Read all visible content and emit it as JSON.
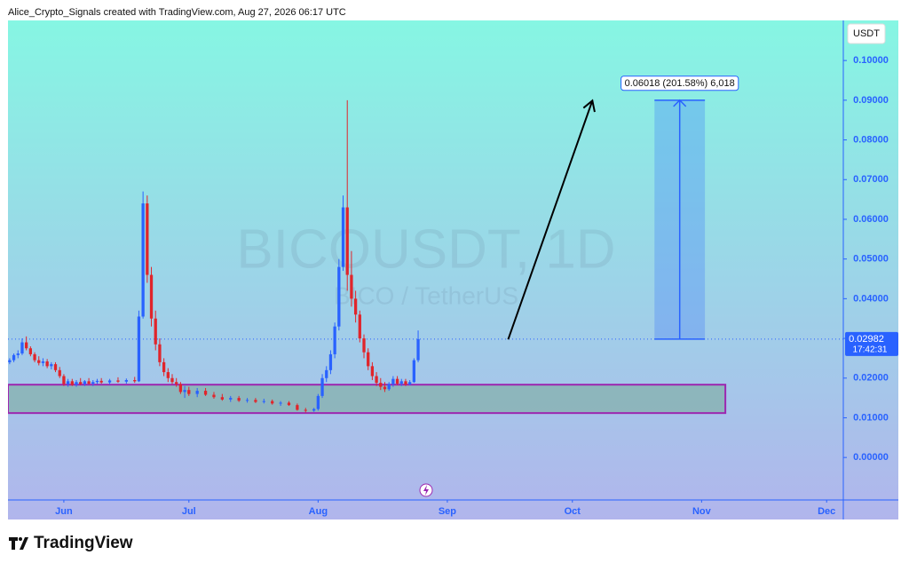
{
  "header": "Alice_Crypto_Signals created with TradingView.com, Aug 27, 2026 06:17 UTC",
  "brand": "TradingView",
  "chart_data": {
    "type": "candlestick",
    "watermark": "BICOUSDT, 1D",
    "watermark_subtitle": "BICO / TetherUS",
    "axis_unit": "USDT",
    "up_color": "#2962ff",
    "down_color": "#e0252b",
    "x": [
      -13,
      -12,
      -11,
      -10,
      -9,
      -8,
      -7,
      -6,
      -5,
      -4,
      -3,
      -2,
      -1,
      0,
      1,
      2,
      3,
      4,
      5,
      6,
      7,
      8,
      9,
      11,
      13,
      15,
      17,
      18,
      19,
      20,
      21,
      22,
      23,
      24,
      25,
      26,
      27,
      28,
      29,
      30,
      32,
      34,
      36,
      38,
      40,
      42,
      44,
      46,
      48,
      50,
      52,
      54,
      56,
      58,
      60,
      61,
      62,
      63,
      64,
      65,
      66,
      67,
      68,
      69,
      70,
      71,
      72,
      73,
      74,
      75,
      76,
      77,
      78,
      79,
      80,
      81,
      82,
      83,
      84,
      85
    ],
    "open": [
      0.024,
      0.0245,
      0.0258,
      0.0262,
      0.029,
      0.0275,
      0.026,
      0.0245,
      0.0238,
      0.0242,
      0.023,
      0.0235,
      0.022,
      0.0205,
      0.0185,
      0.0192,
      0.0183,
      0.019,
      0.0185,
      0.0192,
      0.0186,
      0.019,
      0.0193,
      0.0189,
      0.0194,
      0.0191,
      0.0195,
      0.0192,
      0.0355,
      0.064,
      0.046,
      0.035,
      0.0285,
      0.024,
      0.0215,
      0.02,
      0.019,
      0.0185,
      0.0165,
      0.017,
      0.016,
      0.0168,
      0.0158,
      0.0152,
      0.0146,
      0.015,
      0.0143,
      0.0145,
      0.014,
      0.0142,
      0.0136,
      0.0138,
      0.0132,
      0.012,
      0.0118,
      0.0122,
      0.0155,
      0.02,
      0.022,
      0.026,
      0.033,
      0.048,
      0.063,
      0.046,
      0.04,
      0.036,
      0.03,
      0.0265,
      0.023,
      0.0205,
      0.0188,
      0.0178,
      0.0172,
      0.0185,
      0.0198,
      0.0186,
      0.0192,
      0.0184,
      0.019,
      0.0245
    ],
    "high": [
      0.025,
      0.0262,
      0.027,
      0.03,
      0.0305,
      0.028,
      0.0265,
      0.0255,
      0.025,
      0.0248,
      0.024,
      0.024,
      0.0228,
      0.021,
      0.0198,
      0.0198,
      0.0195,
      0.02,
      0.0195,
      0.02,
      0.0195,
      0.0198,
      0.02,
      0.0198,
      0.0202,
      0.0199,
      0.0203,
      0.037,
      0.067,
      0.066,
      0.048,
      0.037,
      0.03,
      0.025,
      0.0225,
      0.021,
      0.02,
      0.019,
      0.018,
      0.0178,
      0.0175,
      0.0175,
      0.0165,
      0.016,
      0.0155,
      0.0155,
      0.015,
      0.015,
      0.0148,
      0.0146,
      0.0142,
      0.0142,
      0.0136,
      0.0125,
      0.0125,
      0.016,
      0.021,
      0.023,
      0.027,
      0.034,
      0.05,
      0.066,
      0.09,
      0.052,
      0.042,
      0.037,
      0.031,
      0.0275,
      0.024,
      0.0215,
      0.02,
      0.019,
      0.019,
      0.0205,
      0.0205,
      0.0198,
      0.0198,
      0.0195,
      0.025,
      0.032
    ],
    "low": [
      0.0235,
      0.024,
      0.025,
      0.0258,
      0.027,
      0.0255,
      0.024,
      0.0232,
      0.023,
      0.0225,
      0.0222,
      0.0215,
      0.02,
      0.018,
      0.0178,
      0.018,
      0.0178,
      0.0182,
      0.018,
      0.0183,
      0.018,
      0.0185,
      0.0186,
      0.0184,
      0.0188,
      0.0186,
      0.0188,
      0.019,
      0.035,
      0.044,
      0.033,
      0.027,
      0.023,
      0.0205,
      0.019,
      0.0185,
      0.0178,
      0.016,
      0.015,
      0.0155,
      0.0152,
      0.0155,
      0.0148,
      0.0143,
      0.014,
      0.014,
      0.0138,
      0.0137,
      0.0136,
      0.0133,
      0.013,
      0.013,
      0.0118,
      0.0113,
      0.0115,
      0.0118,
      0.015,
      0.019,
      0.021,
      0.025,
      0.032,
      0.047,
      0.042,
      0.038,
      0.034,
      0.029,
      0.025,
      0.022,
      0.0195,
      0.018,
      0.017,
      0.0165,
      0.0168,
      0.0178,
      0.0182,
      0.018,
      0.018,
      0.0182,
      0.0188,
      0.024
    ],
    "close": [
      0.0245,
      0.0258,
      0.0262,
      0.029,
      0.0275,
      0.026,
      0.0245,
      0.0238,
      0.0242,
      0.023,
      0.0235,
      0.022,
      0.0205,
      0.0185,
      0.0192,
      0.0183,
      0.019,
      0.0185,
      0.0192,
      0.0186,
      0.019,
      0.0193,
      0.0189,
      0.0194,
      0.0191,
      0.0195,
      0.0192,
      0.0355,
      0.064,
      0.046,
      0.035,
      0.0285,
      0.024,
      0.0215,
      0.02,
      0.019,
      0.0185,
      0.0165,
      0.017,
      0.016,
      0.0168,
      0.0158,
      0.0152,
      0.0146,
      0.015,
      0.0143,
      0.0145,
      0.014,
      0.0142,
      0.0136,
      0.0138,
      0.0132,
      0.012,
      0.0118,
      0.0122,
      0.0155,
      0.02,
      0.022,
      0.026,
      0.033,
      0.048,
      0.063,
      0.046,
      0.04,
      0.036,
      0.03,
      0.0265,
      0.023,
      0.0205,
      0.0188,
      0.0178,
      0.0172,
      0.0185,
      0.0198,
      0.0186,
      0.0192,
      0.0184,
      0.019,
      0.0245,
      0.02982
    ],
    "xlim": [
      -13.4,
      187
    ],
    "xticks": [
      {
        "value": 0,
        "label": "Jun"
      },
      {
        "value": 30,
        "label": "Jul"
      },
      {
        "value": 61,
        "label": "Aug"
      },
      {
        "value": 92,
        "label": "Sep"
      },
      {
        "value": 122,
        "label": "Oct"
      },
      {
        "value": 153,
        "label": "Nov"
      },
      {
        "value": 183,
        "label": "Dec"
      }
    ],
    "ylim": [
      -0.0107,
      0.1101
    ],
    "yticks": [
      {
        "value": 0,
        "label": "0.00000"
      },
      {
        "value": 0.01,
        "label": "0.01000"
      },
      {
        "value": 0.02,
        "label": "0.02000"
      },
      {
        "value": 0.03,
        "label": "0.03000"
      },
      {
        "value": 0.04,
        "label": "0.04000"
      },
      {
        "value": 0.05,
        "label": "0.05000"
      },
      {
        "value": 0.06,
        "label": "0.06000"
      },
      {
        "value": 0.07,
        "label": "0.07000"
      },
      {
        "value": 0.08,
        "label": "0.08000"
      },
      {
        "value": 0.09,
        "label": "0.09000"
      },
      {
        "value": 0.1,
        "label": "0.10000"
      }
    ],
    "last_price": {
      "value": 0.02982,
      "countdown": "17:42:31",
      "color": "#2962ff"
    },
    "support_zone": {
      "x": [
        -13.4,
        158.7
      ],
      "y": [
        0.01119,
        0.01834
      ],
      "color": "#9c27b0"
    },
    "target": {
      "x": [
        141.7,
        153.8
      ],
      "y": [
        0.02982,
        0.09
      ],
      "label": "0.06018 (201.58%) 6,018",
      "color": "#2962ff"
    },
    "arrow": {
      "x": [
        106.6,
        126.8
      ],
      "y": [
        0.02975,
        0.0899
      ]
    }
  }
}
